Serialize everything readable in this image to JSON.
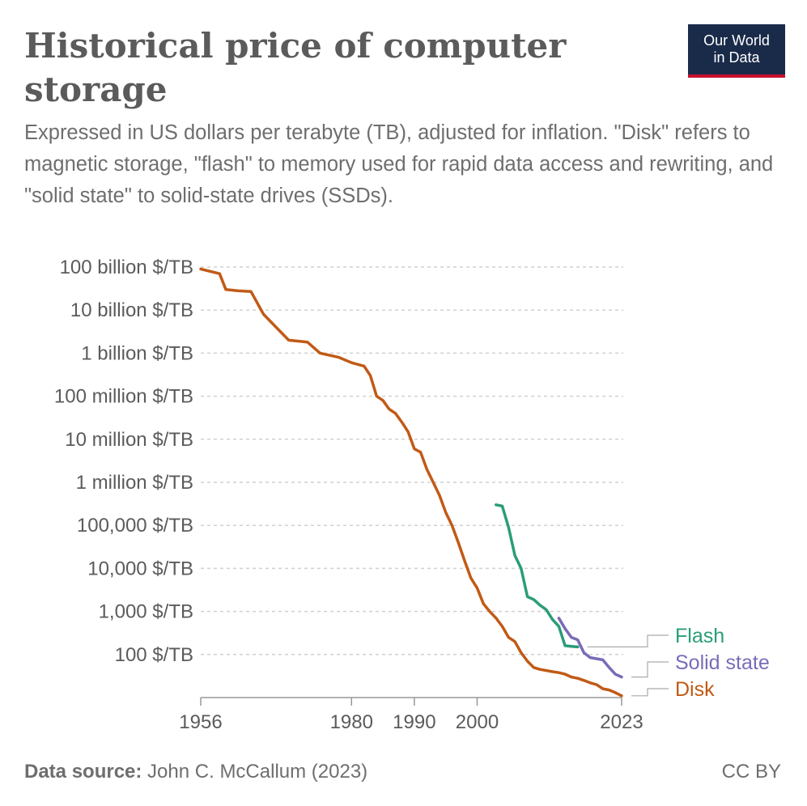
{
  "header": {
    "title": "Historical price of computer storage",
    "subtitle": "Expressed in US dollars per terabyte (TB), adjusted for inflation. \"Disk\" refers to magnetic storage, \"flash\" to memory used for rapid data access and rewriting, and \"solid state\" to solid-state drives (SSDs).",
    "logo_line1": "Our World",
    "logo_line2": "in Data"
  },
  "footer": {
    "source_label": "Data source:",
    "source_text": " John C. McCallum (2023)",
    "license": "CC BY"
  },
  "colors": {
    "disk": "#c15a16",
    "flash": "#2a9d78",
    "solid_state": "#7a6bb8",
    "text": "#5b5b5b",
    "grid": "#d0d0d0",
    "logo_bg": "#1a2b4a",
    "logo_accent": "#c8102e"
  },
  "chart_data": {
    "type": "line",
    "x_scale": "linear",
    "y_scale": "log",
    "xlim": [
      1956,
      2023
    ],
    "ylim": [
      10,
      100000000000
    ],
    "x_ticks": [
      {
        "value": 1956,
        "label": "1956"
      },
      {
        "value": 1980,
        "label": "1980"
      },
      {
        "value": 1990,
        "label": "1990"
      },
      {
        "value": 2000,
        "label": "2000"
      },
      {
        "value": 2023,
        "label": "2023"
      }
    ],
    "y_ticks": [
      {
        "value": 100000000000,
        "label": "100 billion $/TB"
      },
      {
        "value": 10000000000,
        "label": "10 billion $/TB"
      },
      {
        "value": 1000000000,
        "label": "1 billion $/TB"
      },
      {
        "value": 100000000,
        "label": "100 million $/TB"
      },
      {
        "value": 10000000,
        "label": "10 million $/TB"
      },
      {
        "value": 1000000,
        "label": "1 million $/TB"
      },
      {
        "value": 100000,
        "label": "100,000 $/TB"
      },
      {
        "value": 10000,
        "label": "10,000 $/TB"
      },
      {
        "value": 1000,
        "label": "1,000 $/TB"
      },
      {
        "value": 100,
        "label": "100 $/TB"
      }
    ],
    "grid": true,
    "legend": "right, inline labels",
    "series": [
      {
        "name": "Flash",
        "color": "#2a9d78",
        "points": [
          [
            2003,
            300000
          ],
          [
            2004,
            280000
          ],
          [
            2005,
            90000
          ],
          [
            2006,
            20000
          ],
          [
            2007,
            10000
          ],
          [
            2008,
            2200
          ],
          [
            2009,
            1900
          ],
          [
            2010,
            1400
          ],
          [
            2011,
            1100
          ],
          [
            2012,
            650
          ],
          [
            2013,
            450
          ],
          [
            2014,
            160
          ],
          [
            2015,
            155
          ],
          [
            2016,
            150
          ]
        ]
      },
      {
        "name": "Solid state",
        "color": "#7a6bb8",
        "points": [
          [
            2013,
            700
          ],
          [
            2014,
            400
          ],
          [
            2015,
            250
          ],
          [
            2016,
            220
          ],
          [
            2017,
            110
          ],
          [
            2018,
            85
          ],
          [
            2019,
            80
          ],
          [
            2020,
            75
          ],
          [
            2021,
            50
          ],
          [
            2022,
            35
          ],
          [
            2023,
            30
          ]
        ]
      },
      {
        "name": "Disk",
        "color": "#c15a16",
        "points": [
          [
            1956,
            90000000000
          ],
          [
            1959,
            70000000000
          ],
          [
            1960,
            30000000000
          ],
          [
            1962,
            28000000000
          ],
          [
            1964,
            27000000000
          ],
          [
            1966,
            8000000000
          ],
          [
            1968,
            4000000000
          ],
          [
            1970,
            2000000000
          ],
          [
            1973,
            1800000000
          ],
          [
            1975,
            1000000000
          ],
          [
            1978,
            800000000
          ],
          [
            1980,
            600000000
          ],
          [
            1982,
            500000000
          ],
          [
            1983,
            300000000
          ],
          [
            1984,
            100000000
          ],
          [
            1985,
            80000000
          ],
          [
            1986,
            50000000
          ],
          [
            1987,
            40000000
          ],
          [
            1988,
            25000000
          ],
          [
            1989,
            15000000
          ],
          [
            1990,
            6000000
          ],
          [
            1991,
            5000000
          ],
          [
            1992,
            2000000
          ],
          [
            1993,
            1000000
          ],
          [
            1994,
            500000
          ],
          [
            1995,
            200000
          ],
          [
            1996,
            100000
          ],
          [
            1997,
            40000
          ],
          [
            1998,
            15000
          ],
          [
            1999,
            6000
          ],
          [
            2000,
            3500
          ],
          [
            2001,
            1500
          ],
          [
            2002,
            1000
          ],
          [
            2003,
            700
          ],
          [
            2004,
            450
          ],
          [
            2005,
            250
          ],
          [
            2006,
            200
          ],
          [
            2007,
            110
          ],
          [
            2008,
            70
          ],
          [
            2009,
            50
          ],
          [
            2010,
            45
          ],
          [
            2012,
            40
          ],
          [
            2013,
            38
          ],
          [
            2014,
            35
          ],
          [
            2015,
            30
          ],
          [
            2016,
            28
          ],
          [
            2017,
            25
          ],
          [
            2018,
            22
          ],
          [
            2019,
            20
          ],
          [
            2020,
            16
          ],
          [
            2021,
            15
          ],
          [
            2022,
            13
          ],
          [
            2023,
            11
          ]
        ]
      }
    ]
  }
}
